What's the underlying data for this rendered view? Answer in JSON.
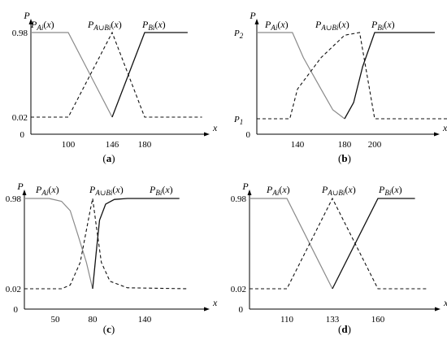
{
  "chart_data": [
    {
      "type": "line",
      "caption": "(a)",
      "xlabel": "x",
      "ylabel": "P",
      "origin_label": "0",
      "xticks": [
        "100",
        "146",
        "180"
      ],
      "yticks": [
        "0.02",
        "0.98"
      ],
      "xlim": [
        0,
        240
      ],
      "ylim": [
        0,
        1.06
      ],
      "curve_labels": [
        "P_{Ai}(x)",
        "P_{A∪Bi}(x)",
        "P_{Bi}(x)"
      ],
      "series": [
        {
          "name": "P_{Ai}(x)",
          "style": "gray",
          "x": [
            0,
            100,
            146
          ],
          "y": [
            0.98,
            0.98,
            0.02
          ]
        },
        {
          "name": "P_{A∪Bi}(x)",
          "style": "dashed",
          "x": [
            0,
            100,
            146,
            180,
            240
          ],
          "y": [
            0.02,
            0.02,
            0.98,
            0.02,
            0.02
          ]
        },
        {
          "name": "P_{Bi}(x)",
          "style": "black",
          "x": [
            146,
            180,
            225
          ],
          "y": [
            0.02,
            0.98,
            0.98
          ]
        }
      ]
    },
    {
      "type": "line",
      "caption": "(b)",
      "xlabel": "x",
      "ylabel": "P",
      "origin_label": "0",
      "xticks": [
        "140",
        "180",
        "200"
      ],
      "yticks": [
        "P_1",
        "P_2"
      ],
      "xlim": [
        60,
        260
      ],
      "ylim": [
        0,
        1.06
      ],
      "curve_labels": [
        "P_{Ai}(x)",
        "P_{A∪Bi}(x)",
        "P_{Bi}(x)"
      ],
      "series": [
        {
          "name": "P_{Ai}(x)",
          "style": "gray",
          "x": [
            60,
            130,
            145,
            160,
            170,
            180
          ],
          "y": [
            0.98,
            0.98,
            0.7,
            0.35,
            0.12,
            0.02
          ]
        },
        {
          "name": "P_{A∪Bi}(x)",
          "style": "dashed",
          "x": [
            60,
            125,
            140,
            160,
            180,
            190,
            200,
            260
          ],
          "y": [
            0.02,
            0.02,
            0.35,
            0.7,
            0.95,
            0.98,
            0.02,
            0.02
          ]
        },
        {
          "name": "P_{Bi}(x)",
          "style": "black",
          "x": [
            180,
            186,
            192,
            200,
            240
          ],
          "y": [
            0.02,
            0.2,
            0.6,
            0.98,
            0.98
          ]
        }
      ]
    },
    {
      "type": "line",
      "caption": "(c)",
      "xlabel": "x",
      "ylabel": "P",
      "origin_label": "0",
      "xticks": [
        "50",
        "80",
        "140"
      ],
      "yticks": [
        "0.02",
        "0.98"
      ],
      "xlim": [
        0,
        200
      ],
      "ylim": [
        0,
        1.06
      ],
      "curve_labels": [
        "P_{Ai}(x)",
        "P_{A∪Bi}(x)",
        "P_{Bi}(x)"
      ],
      "series": [
        {
          "name": "P_{Ai}(x)",
          "style": "gray",
          "x": [
            0,
            40,
            55,
            62,
            68,
            75,
            80
          ],
          "y": [
            0.98,
            0.98,
            0.95,
            0.85,
            0.6,
            0.3,
            0.02
          ]
        },
        {
          "name": "P_{A∪Bi}(x)",
          "style": "dashed",
          "x": [
            0,
            55,
            62,
            70,
            78,
            80,
            84,
            90,
            100,
            120,
            190
          ],
          "y": [
            0.02,
            0.02,
            0.06,
            0.3,
            0.85,
            0.98,
            0.7,
            0.3,
            0.1,
            0.03,
            0.02
          ]
        },
        {
          "name": "P_{Bi}(x)",
          "style": "black",
          "x": [
            80,
            84,
            88,
            95,
            105,
            120,
            180
          ],
          "y": [
            0.02,
            0.4,
            0.75,
            0.92,
            0.97,
            0.98,
            0.98
          ]
        }
      ]
    },
    {
      "type": "line",
      "caption": "(d)",
      "xlabel": "x",
      "ylabel": "P",
      "origin_label": "0",
      "xticks": [
        "110",
        "133",
        "160"
      ],
      "yticks": [
        "0.98"
      ],
      "ylabel_extra": "0.02",
      "xlim": [
        80,
        190
      ],
      "ylim": [
        0,
        1.06
      ],
      "curve_labels": [
        "P_{Ai}(x)",
        "P_{A∪Bi}(x)",
        "P_{Bi}(x)"
      ],
      "series": [
        {
          "name": "P_{Ai}(x)",
          "style": "gray",
          "x": [
            80,
            110,
            133
          ],
          "y": [
            0.98,
            0.98,
            0.02
          ]
        },
        {
          "name": "P_{A∪Bi}(x)",
          "style": "dashed",
          "x": [
            80,
            110,
            133,
            160,
            190
          ],
          "y": [
            0.02,
            0.02,
            0.98,
            0.02,
            0.02
          ]
        },
        {
          "name": "P_{Bi}(x)",
          "style": "black",
          "x": [
            133,
            160,
            182
          ],
          "y": [
            0.02,
            0.98,
            0.98
          ]
        }
      ]
    }
  ]
}
